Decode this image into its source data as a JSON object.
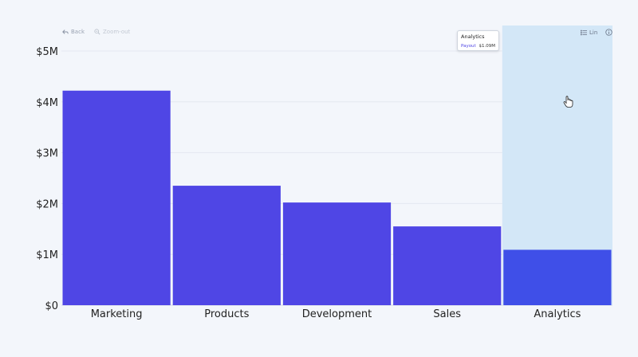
{
  "toolbar": {
    "back_label": "Back",
    "zoom_out_label": "Zoom-out",
    "scale_label": "Lin"
  },
  "tooltip": {
    "title": "Analytics",
    "key": "Payout",
    "value": "$1.09M"
  },
  "colors": {
    "bar": "#4f46e5",
    "bar_hover": "#3f4fe8",
    "hover_band": "#d3e7f7",
    "grid": "#e4e8f0",
    "background": "#f3f6fb",
    "axis_text": "#222222"
  },
  "chart_data": {
    "type": "bar",
    "categories": [
      "Marketing",
      "Products",
      "Development",
      "Sales",
      "Analytics"
    ],
    "values": [
      4.22,
      2.35,
      2.02,
      1.55,
      1.09
    ],
    "value_unit": "millions USD",
    "y_ticks": [
      "$0",
      "$1M",
      "$2M",
      "$3M",
      "$4M",
      "$5M"
    ],
    "ylim": [
      0,
      5
    ],
    "title": "",
    "xlabel": "",
    "ylabel": "",
    "grid": true,
    "highlighted_category": "Analytics"
  }
}
